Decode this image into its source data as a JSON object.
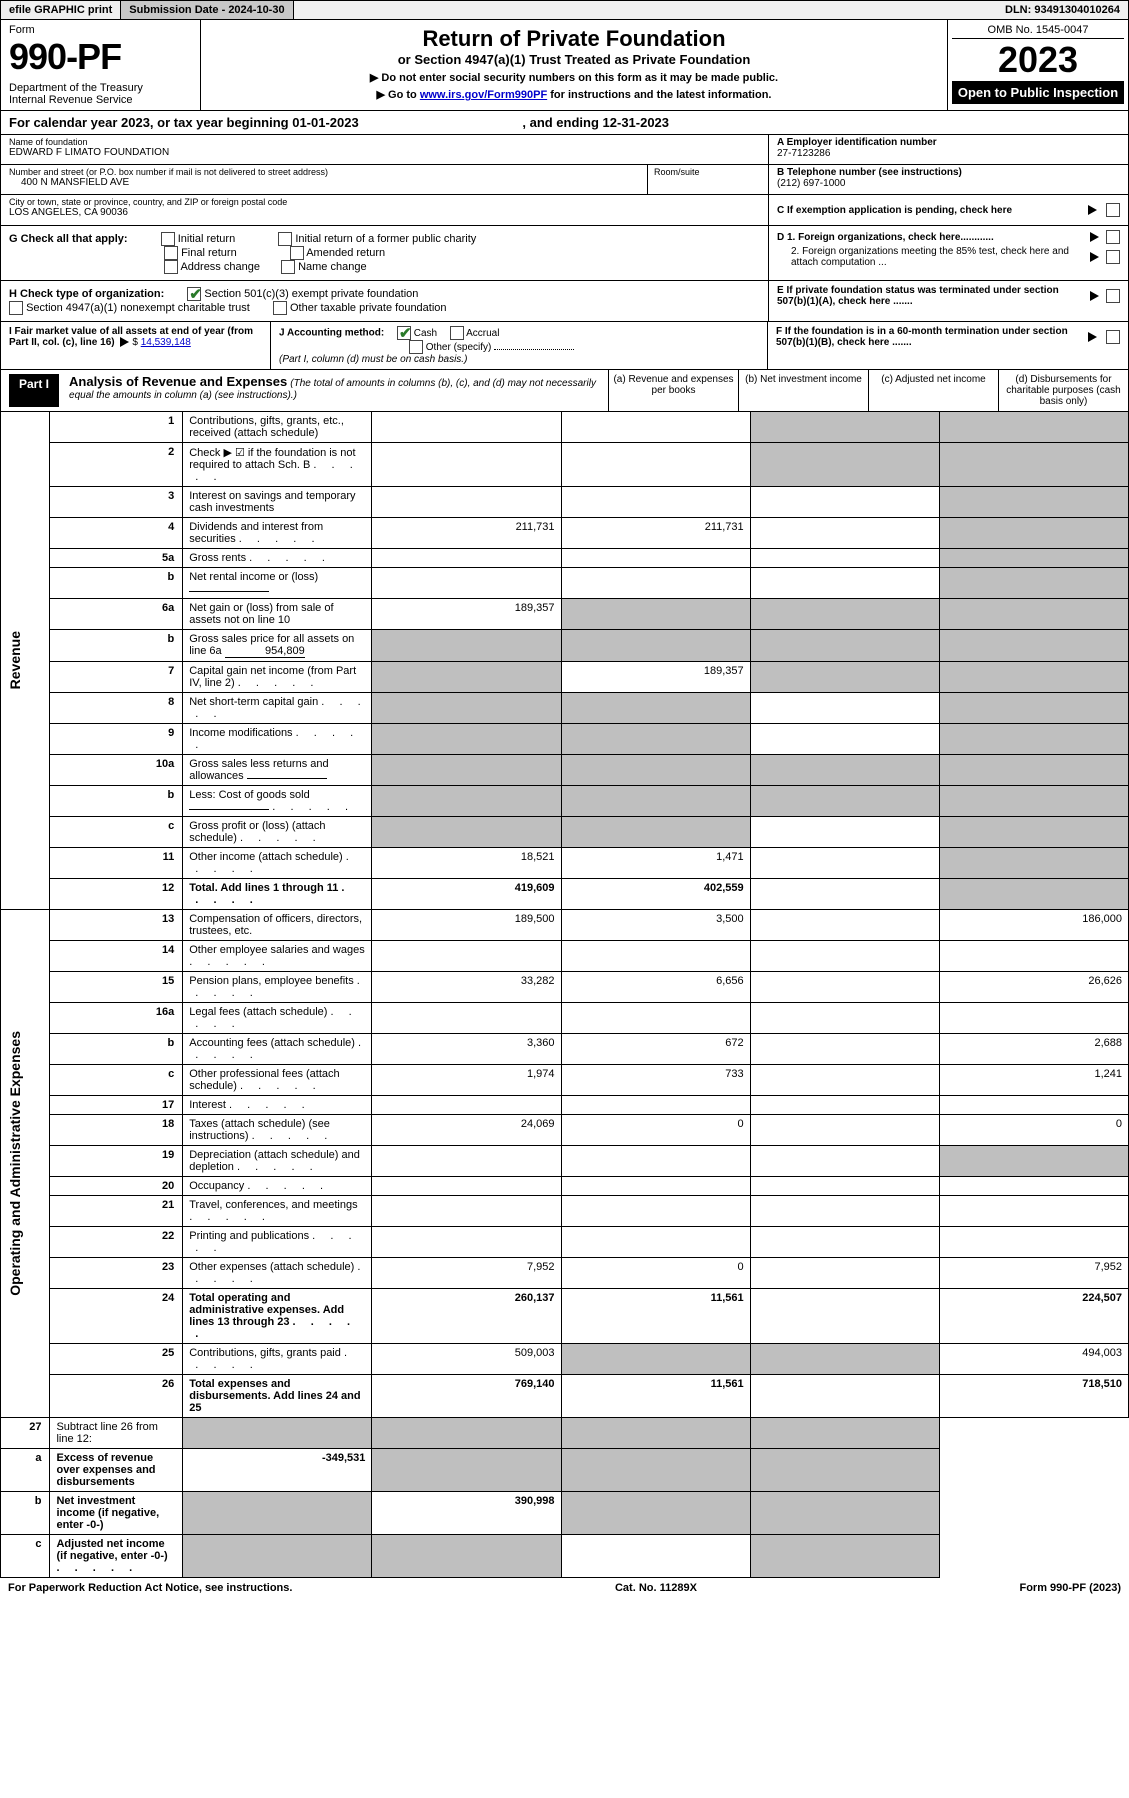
{
  "topbar": {
    "efile": "efile GRAPHIC print",
    "sub_label": "Submission Date - 2024-10-30",
    "dln": "DLN: 93491304010264"
  },
  "header": {
    "form_lbl": "Form",
    "form_num": "990-PF",
    "dept": "Department of the Treasury\nInternal Revenue Service",
    "title": "Return of Private Foundation",
    "subtitle": "or Section 4947(a)(1) Trust Treated as Private Foundation",
    "instr1": "▶ Do not enter social security numbers on this form as it may be made public.",
    "instr2_pre": "▶ Go to ",
    "instr2_link": "www.irs.gov/Form990PF",
    "instr2_post": " for instructions and the latest information.",
    "omb": "OMB No. 1545-0047",
    "year": "2023",
    "open": "Open to Public Inspection"
  },
  "cal": {
    "text": "For calendar year 2023, or tax year beginning 01-01-2023",
    "end": ", and ending 12-31-2023"
  },
  "org": {
    "name_lbl": "Name of foundation",
    "name": "EDWARD F LIMATO FOUNDATION",
    "addr_lbl": "Number and street (or P.O. box number if mail is not delivered to street address)",
    "addr": "400 N MANSFIELD AVE",
    "room_lbl": "Room/suite",
    "city_lbl": "City or town, state or province, country, and ZIP or foreign postal code",
    "city": "LOS ANGELES, CA  90036",
    "ein_lbl": "A Employer identification number",
    "ein": "27-7123286",
    "tel_lbl": "B Telephone number (see instructions)",
    "tel": "(212) 697-1000",
    "c_lbl": "C If exemption application is pending, check here"
  },
  "g": {
    "lbl": "G Check all that apply:",
    "opts": [
      "Initial return",
      "Final return",
      "Address change",
      "Initial return of a former public charity",
      "Amended return",
      "Name change"
    ]
  },
  "d": {
    "d1": "D 1. Foreign organizations, check here............",
    "d2": "2. Foreign organizations meeting the 85% test, check here and attach computation ...",
    "e": "E  If private foundation status was terminated under section 507(b)(1)(A), check here .......",
    "f": "F  If the foundation is in a 60-month termination under section 507(b)(1)(B), check here ......."
  },
  "h": {
    "lbl": "H Check type of organization:",
    "opt1": "Section 501(c)(3) exempt private foundation",
    "opt2": "Section 4947(a)(1) nonexempt charitable trust",
    "opt3": "Other taxable private foundation"
  },
  "i": {
    "lbl": "I Fair market value of all assets at end of year (from Part II, col. (c), line 16)",
    "val": "14,539,148"
  },
  "j": {
    "lbl": "J Accounting method:",
    "cash": "Cash",
    "accrual": "Accrual",
    "other": "Other (specify)",
    "note": "(Part I, column (d) must be on cash basis.)"
  },
  "part1": {
    "hdr": "Part I",
    "title": "Analysis of Revenue and Expenses",
    "title_note": "(The total of amounts in columns (b), (c), and (d) may not necessarily equal the amounts in column (a) (see instructions).)",
    "col_a": "(a)  Revenue and expenses per books",
    "col_b": "(b)  Net investment income",
    "col_c": "(c)  Adjusted net income",
    "col_d": "(d)  Disbursements for charitable purposes (cash basis only)"
  },
  "side_labels": {
    "revenue": "Revenue",
    "expenses": "Operating and Administrative Expenses"
  },
  "rows": [
    {
      "n": "1",
      "d": "Contributions, gifts, grants, etc., received (attach schedule)",
      "a": "",
      "b": "",
      "c": "s",
      "dd": "s"
    },
    {
      "n": "2",
      "d": "Check ▶ ☑ if the foundation is not required to attach Sch. B",
      "a": "",
      "b": "",
      "dots": true,
      "c": "s",
      "dd": "s"
    },
    {
      "n": "3",
      "d": "Interest on savings and temporary cash investments",
      "a": "",
      "b": "",
      "c": "",
      "dd": "s"
    },
    {
      "n": "4",
      "d": "Dividends and interest from securities",
      "a": "211,731",
      "b": "211,731",
      "c": "",
      "dd": "s",
      "dots": true
    },
    {
      "n": "5a",
      "d": "Gross rents",
      "a": "",
      "b": "",
      "c": "",
      "dd": "s",
      "dots": true
    },
    {
      "n": "b",
      "d": "Net rental income or (loss)",
      "a": "",
      "b": "",
      "c": "",
      "dd": "s",
      "inline": ""
    },
    {
      "n": "6a",
      "d": "Net gain or (loss) from sale of assets not on line 10",
      "a": "189,357",
      "b": "s",
      "c": "s",
      "dd": "s"
    },
    {
      "n": "b",
      "d": "Gross sales price for all assets on line 6a",
      "a": "s",
      "b": "s",
      "c": "s",
      "dd": "s",
      "inline": "954,809"
    },
    {
      "n": "7",
      "d": "Capital gain net income (from Part IV, line 2)",
      "a": "s",
      "b": "189,357",
      "c": "s",
      "dd": "s",
      "dots": true
    },
    {
      "n": "8",
      "d": "Net short-term capital gain",
      "a": "s",
      "b": "s",
      "c": "",
      "dd": "s",
      "dots": true
    },
    {
      "n": "9",
      "d": "Income modifications",
      "a": "s",
      "b": "s",
      "c": "",
      "dd": "s",
      "dots": true
    },
    {
      "n": "10a",
      "d": "Gross sales less returns and allowances",
      "a": "s",
      "b": "s",
      "c": "s",
      "dd": "s",
      "inline": ""
    },
    {
      "n": "b",
      "d": "Less: Cost of goods sold",
      "a": "s",
      "b": "s",
      "c": "s",
      "dd": "s",
      "inline": "",
      "dots": true
    },
    {
      "n": "c",
      "d": "Gross profit or (loss) (attach schedule)",
      "a": "s",
      "b": "s",
      "c": "",
      "dd": "s",
      "dots": true
    },
    {
      "n": "11",
      "d": "Other income (attach schedule)",
      "a": "18,521",
      "b": "1,471",
      "c": "",
      "dd": "s",
      "dots": true
    },
    {
      "n": "12",
      "d": "Total. Add lines 1 through 11",
      "a": "419,609",
      "b": "402,559",
      "c": "",
      "dd": "s",
      "bold": true,
      "dots": true
    }
  ],
  "exp_rows": [
    {
      "n": "13",
      "d": "Compensation of officers, directors, trustees, etc.",
      "a": "189,500",
      "b": "3,500",
      "c": "",
      "dd": "186,000"
    },
    {
      "n": "14",
      "d": "Other employee salaries and wages",
      "a": "",
      "b": "",
      "c": "",
      "dd": "",
      "dots": true
    },
    {
      "n": "15",
      "d": "Pension plans, employee benefits",
      "a": "33,282",
      "b": "6,656",
      "c": "",
      "dd": "26,626",
      "dots": true
    },
    {
      "n": "16a",
      "d": "Legal fees (attach schedule)",
      "a": "",
      "b": "",
      "c": "",
      "dd": "",
      "dots": true
    },
    {
      "n": "b",
      "d": "Accounting fees (attach schedule)",
      "a": "3,360",
      "b": "672",
      "c": "",
      "dd": "2,688",
      "dots": true
    },
    {
      "n": "c",
      "d": "Other professional fees (attach schedule)",
      "a": "1,974",
      "b": "733",
      "c": "",
      "dd": "1,241",
      "dots": true
    },
    {
      "n": "17",
      "d": "Interest",
      "a": "",
      "b": "",
      "c": "",
      "dd": "",
      "dots": true
    },
    {
      "n": "18",
      "d": "Taxes (attach schedule) (see instructions)",
      "a": "24,069",
      "b": "0",
      "c": "",
      "dd": "0",
      "dots": true
    },
    {
      "n": "19",
      "d": "Depreciation (attach schedule) and depletion",
      "a": "",
      "b": "",
      "c": "",
      "dd": "s",
      "dots": true
    },
    {
      "n": "20",
      "d": "Occupancy",
      "a": "",
      "b": "",
      "c": "",
      "dd": "",
      "dots": true
    },
    {
      "n": "21",
      "d": "Travel, conferences, and meetings",
      "a": "",
      "b": "",
      "c": "",
      "dd": "",
      "dots": true
    },
    {
      "n": "22",
      "d": "Printing and publications",
      "a": "",
      "b": "",
      "c": "",
      "dd": "",
      "dots": true
    },
    {
      "n": "23",
      "d": "Other expenses (attach schedule)",
      "a": "7,952",
      "b": "0",
      "c": "",
      "dd": "7,952",
      "dots": true
    },
    {
      "n": "24",
      "d": "Total operating and administrative expenses. Add lines 13 through 23",
      "a": "260,137",
      "b": "11,561",
      "c": "",
      "dd": "224,507",
      "bold": true,
      "dots": true
    },
    {
      "n": "25",
      "d": "Contributions, gifts, grants paid",
      "a": "509,003",
      "b": "s",
      "c": "s",
      "dd": "494,003",
      "dots": true
    },
    {
      "n": "26",
      "d": "Total expenses and disbursements. Add lines 24 and 25",
      "a": "769,140",
      "b": "11,561",
      "c": "",
      "dd": "718,510",
      "bold": true
    }
  ],
  "bottom_rows": [
    {
      "n": "27",
      "d": "Subtract line 26 from line 12:",
      "a": "s",
      "b": "s",
      "c": "s",
      "dd": "s"
    },
    {
      "n": "a",
      "d": "Excess of revenue over expenses and disbursements",
      "a": "-349,531",
      "b": "s",
      "c": "s",
      "dd": "s",
      "bold": true
    },
    {
      "n": "b",
      "d": "Net investment income (if negative, enter -0-)",
      "a": "s",
      "b": "390,998",
      "c": "s",
      "dd": "s",
      "bold": true
    },
    {
      "n": "c",
      "d": "Adjusted net income (if negative, enter -0-)",
      "a": "s",
      "b": "s",
      "c": "",
      "dd": "s",
      "bold": true,
      "dots": true
    }
  ],
  "footer": {
    "left": "For Paperwork Reduction Act Notice, see instructions.",
    "mid": "Cat. No. 11289X",
    "right": "Form 990-PF (2023)"
  }
}
